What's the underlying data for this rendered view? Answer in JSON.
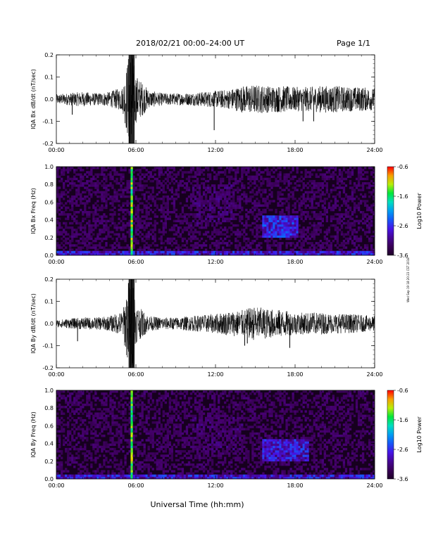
{
  "header": {
    "title": "2018/02/21  00:00–24:00 UT",
    "page": "Page 1/1"
  },
  "footer": {
    "xlabel": "Universal Time (hh:mm)",
    "stamp": "Wed Sep 19 18:20:23 CST 2018"
  },
  "chart_data": [
    {
      "type": "line",
      "ylabel": "IQA Bx dB/dt (nT/sec)",
      "xlabel": "",
      "x_ticks": [
        "00:00",
        "06:00",
        "12:00",
        "18:00",
        "24:00"
      ],
      "x_range_hours": [
        0,
        24
      ],
      "ylim": [
        -0.2,
        0.2
      ],
      "y_ticks": [
        "-0.2",
        "-0.1",
        "0.0",
        "0.1",
        "0.2"
      ],
      "series": [
        {
          "points": [
            [
              0,
              0.02
            ],
            [
              1,
              0.025
            ],
            [
              2,
              0.03
            ],
            [
              3,
              0.025
            ],
            [
              4,
              0.03
            ],
            [
              5,
              0.05
            ],
            [
              5.5,
              0.2
            ],
            [
              5.7,
              0.2
            ],
            [
              6,
              0.1
            ],
            [
              7,
              0.035
            ],
            [
              8,
              0.025
            ],
            [
              9,
              0.025
            ],
            [
              10,
              0.025
            ],
            [
              11,
              0.03
            ],
            [
              12,
              0.035
            ],
            [
              13,
              0.04
            ],
            [
              14,
              0.055
            ],
            [
              15,
              0.06
            ],
            [
              16,
              0.055
            ],
            [
              17,
              0.055
            ],
            [
              18,
              0.05
            ],
            [
              19,
              0.05
            ],
            [
              20,
              0.055
            ],
            [
              21,
              0.055
            ],
            [
              22,
              0.05
            ],
            [
              23,
              0.05
            ],
            [
              24,
              0.045
            ]
          ],
          "envelope_note": "amplitude envelope of oscillations around 0 (nT/sec)"
        }
      ],
      "spikes": [
        [
          1.2,
          -0.07
        ],
        [
          5.5,
          -0.2
        ],
        [
          5.7,
          0.2
        ],
        [
          11.9,
          -0.14
        ],
        [
          18.6,
          -0.1
        ],
        [
          19.4,
          -0.1
        ]
      ]
    },
    {
      "type": "heatmap",
      "ylabel": "IQA Bx Freq (Hz)",
      "x_ticks": [
        "00:00",
        "06:00",
        "12:00",
        "18:00",
        "24:00"
      ],
      "x_range_hours": [
        0,
        24
      ],
      "ylim": [
        0,
        1.0
      ],
      "y_ticks": [
        "0.0",
        "0.2",
        "0.4",
        "0.6",
        "0.8",
        "1.0"
      ],
      "colorbar": {
        "label": "Log10 Power",
        "ticks": [
          "-0.6",
          "-1.6",
          "-2.6",
          "-3.6"
        ],
        "range": [
          -3.6,
          -0.6
        ]
      },
      "features": [
        {
          "x_hours": [
            5.6,
            5.8
          ],
          "freq_hz": [
            0,
            1.0
          ],
          "level": -1.0
        },
        {
          "x_hours": [
            0,
            24
          ],
          "freq_hz": [
            0,
            0.04
          ],
          "level": -2.4
        },
        {
          "x_hours": [
            10.3,
            13.5
          ],
          "freq_hz": [
            0.35,
            0.8
          ],
          "level": -3.0
        },
        {
          "x_hours": [
            15.5,
            18.2
          ],
          "freq_hz": [
            0.2,
            0.45
          ],
          "level": -2.3
        }
      ]
    },
    {
      "type": "line",
      "ylabel": "IQA By dB/dt (nT/sec)",
      "xlabel": "",
      "x_ticks": [
        "00:00",
        "06:00",
        "12:00",
        "18:00",
        "24:00"
      ],
      "x_range_hours": [
        0,
        24
      ],
      "ylim": [
        -0.2,
        0.2
      ],
      "y_ticks": [
        "-0.2",
        "-0.1",
        "0.0",
        "0.1",
        "0.2"
      ],
      "series": [
        {
          "points": [
            [
              0,
              0.015
            ],
            [
              1,
              0.02
            ],
            [
              2,
              0.025
            ],
            [
              3,
              0.025
            ],
            [
              4,
              0.03
            ],
            [
              5,
              0.05
            ],
            [
              5.5,
              0.2
            ],
            [
              5.8,
              0.2
            ],
            [
              6,
              0.08
            ],
            [
              7,
              0.03
            ],
            [
              8,
              0.025
            ],
            [
              9,
              0.025
            ],
            [
              10,
              0.03
            ],
            [
              11,
              0.035
            ],
            [
              12,
              0.04
            ],
            [
              13,
              0.05
            ],
            [
              14,
              0.055
            ],
            [
              15,
              0.07
            ],
            [
              16,
              0.06
            ],
            [
              17,
              0.055
            ],
            [
              18,
              0.045
            ],
            [
              19,
              0.045
            ],
            [
              20,
              0.045
            ],
            [
              21,
              0.04
            ],
            [
              22,
              0.04
            ],
            [
              23,
              0.035
            ],
            [
              24,
              0.03
            ]
          ],
          "envelope_note": "amplitude envelope of oscillations around 0 (nT/sec)"
        }
      ],
      "spikes": [
        [
          1.6,
          -0.08
        ],
        [
          5.6,
          -0.2
        ],
        [
          5.7,
          0.2
        ],
        [
          14.2,
          -0.1
        ],
        [
          14.4,
          -0.09
        ],
        [
          17.6,
          -0.11
        ]
      ]
    },
    {
      "type": "heatmap",
      "ylabel": "IQA By Freq (Hz)",
      "x_ticks": [
        "00:00",
        "06:00",
        "12:00",
        "18:00",
        "24:00"
      ],
      "x_range_hours": [
        0,
        24
      ],
      "ylim": [
        0,
        1.0
      ],
      "y_ticks": [
        "0.0",
        "0.2",
        "0.4",
        "0.6",
        "0.8",
        "1.0"
      ],
      "colorbar": {
        "label": "Log10 Power",
        "ticks": [
          "-0.6",
          "-1.6",
          "-2.6",
          "-3.6"
        ],
        "range": [
          -3.6,
          -0.6
        ]
      },
      "features": [
        {
          "x_hours": [
            5.6,
            5.8
          ],
          "freq_hz": [
            0,
            1.0
          ],
          "level": -1.0
        },
        {
          "x_hours": [
            0,
            24
          ],
          "freq_hz": [
            0,
            0.04
          ],
          "level": -2.4
        },
        {
          "x_hours": [
            10.3,
            14
          ],
          "freq_hz": [
            0.3,
            0.7
          ],
          "level": -3.0
        },
        {
          "x_hours": [
            15.5,
            19
          ],
          "freq_hz": [
            0.2,
            0.45
          ],
          "level": -2.4
        }
      ]
    }
  ]
}
